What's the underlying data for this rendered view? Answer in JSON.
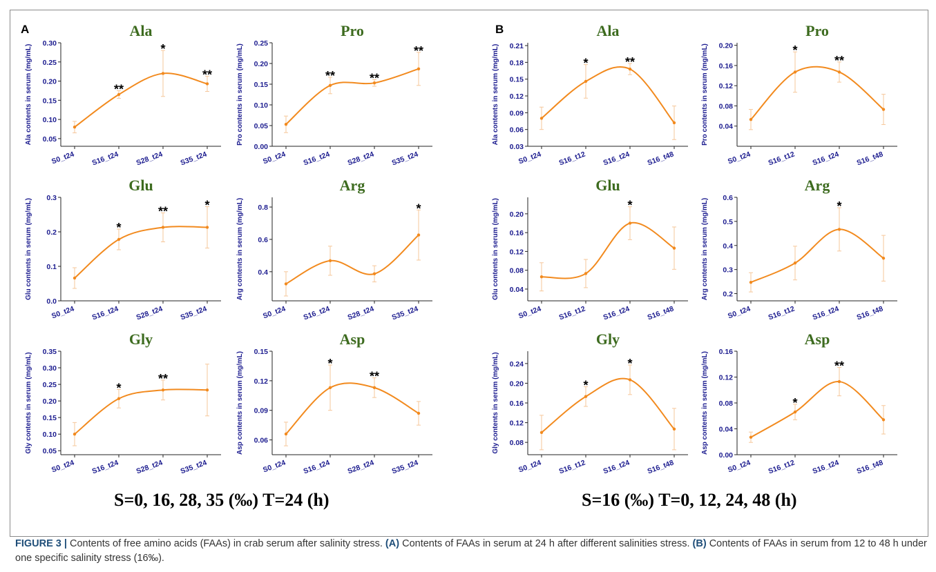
{
  "panels": [
    {
      "letter": "A",
      "condition": "S=0, 16, 28, 35 (‰)  T=24 (h)"
    },
    {
      "letter": "B",
      "condition": "S=16 (‰)  T=0, 12, 24, 48 (h)"
    }
  ],
  "caption": {
    "label": "FIGURE 3 |",
    "text1": " Contents of free amino acids (FAAs) in crab serum after salinity stress. ",
    "a_tag": "(A)",
    "text2": " Contents of FAAs in serum at 24 h after different salinities stress. ",
    "b_tag": "(B)",
    "text3": " Contents of FAAs in serum from 12 to 48 h under one specific salinity stress (16‰)."
  },
  "colors": {
    "line": "#f28a1e",
    "error": "#f6c79a",
    "axis": "#222222",
    "title": "#3d6b1f",
    "tick": "#1c1c8f"
  },
  "chart_data": [
    {
      "type": "line",
      "panel": "A",
      "title": "Ala",
      "ylabel": "Ala contents in serum (mg/mL)",
      "categories": [
        "S0_t24",
        "S16_t24",
        "S28_t24",
        "S35_t24"
      ],
      "values": [
        0.08,
        0.165,
        0.22,
        0.193
      ],
      "errors": [
        0.015,
        0.01,
        0.06,
        0.02
      ],
      "sig": [
        "",
        "**",
        "*",
        "**"
      ],
      "ylim": [
        0.03,
        0.3
      ],
      "yticks": [
        "0.05",
        "0.10",
        "0.15",
        "0.20",
        "0.25",
        "0.30"
      ]
    },
    {
      "type": "line",
      "panel": "A",
      "title": "Pro",
      "ylabel": "Pro contents in serum (mg/mL)",
      "categories": [
        "S0_t24",
        "S16_t24",
        "S28_t24",
        "S35_t24"
      ],
      "values": [
        0.053,
        0.147,
        0.153,
        0.187
      ],
      "errors": [
        0.02,
        0.02,
        0.008,
        0.04
      ],
      "sig": [
        "",
        "**",
        "**",
        "**"
      ],
      "ylim": [
        0.0,
        0.25
      ],
      "yticks": [
        "0.00",
        "0.05",
        "0.10",
        "0.15",
        "0.20",
        "0.25"
      ]
    },
    {
      "type": "line",
      "panel": "A",
      "title": "Glu",
      "ylabel": "Glu contents in serum (mg/mL)",
      "categories": [
        "S0_t24",
        "S16_t24",
        "S28_t24",
        "S35_t24"
      ],
      "values": [
        0.066,
        0.178,
        0.213,
        0.213
      ],
      "errors": [
        0.03,
        0.03,
        0.042,
        0.06
      ],
      "sig": [
        "",
        "*",
        "**",
        "*"
      ],
      "ylim": [
        0.0,
        0.3
      ],
      "yticks": [
        "0.0",
        "0.1",
        "0.2",
        "0.3"
      ]
    },
    {
      "type": "line",
      "panel": "A",
      "title": "Arg",
      "ylabel": "Arg contents in serum (mg/mL)",
      "categories": [
        "S0_t24",
        "S16_t24",
        "S28_t24",
        "S35_t24"
      ],
      "values": [
        0.325,
        0.468,
        0.387,
        0.627
      ],
      "errors": [
        0.075,
        0.09,
        0.05,
        0.155
      ],
      "sig": [
        "",
        "",
        "",
        "*"
      ],
      "ylim": [
        0.22,
        0.86
      ],
      "yticks": [
        "0.4",
        "0.6",
        "0.8"
      ]
    },
    {
      "type": "line",
      "panel": "A",
      "title": "Gly",
      "ylabel": "Gly contents in serum (mg/mL)",
      "categories": [
        "S0_t24",
        "S16_t24",
        "S28_t24",
        "S35_t24"
      ],
      "values": [
        0.1,
        0.207,
        0.233,
        0.233
      ],
      "errors": [
        0.035,
        0.028,
        0.03,
        0.078
      ],
      "sig": [
        "",
        "*",
        "**",
        ""
      ],
      "ylim": [
        0.038,
        0.35
      ],
      "yticks": [
        "0.05",
        "0.10",
        "0.15",
        "0.20",
        "0.25",
        "0.30",
        "0.35"
      ]
    },
    {
      "type": "line",
      "panel": "A",
      "title": "Asp",
      "ylabel": "Asp contents in serum (mg/mL)",
      "categories": [
        "S0_t24",
        "S16_t24",
        "S28_t24",
        "S35_t24"
      ],
      "values": [
        0.066,
        0.113,
        0.113,
        0.087
      ],
      "errors": [
        0.012,
        0.023,
        0.01,
        0.012
      ],
      "sig": [
        "",
        "*",
        "**",
        ""
      ],
      "ylim": [
        0.045,
        0.15
      ],
      "yticks": [
        "0.06",
        "0.09",
        "0.12",
        "0.15"
      ]
    },
    {
      "type": "line",
      "panel": "B",
      "title": "Ala",
      "ylabel": "Ala contents in serum (mg/mL)",
      "categories": [
        "S0_t24",
        "S16_t12",
        "S16_t24",
        "S16_t48"
      ],
      "values": [
        0.08,
        0.146,
        0.168,
        0.072
      ],
      "errors": [
        0.02,
        0.03,
        0.01,
        0.03
      ],
      "sig": [
        "",
        "*",
        "**",
        ""
      ],
      "ylim": [
        0.03,
        0.215
      ],
      "yticks": [
        "0.03",
        "0.06",
        "0.09",
        "0.12",
        "0.15",
        "0.18",
        "0.21"
      ]
    },
    {
      "type": "line",
      "panel": "B",
      "title": "Pro",
      "ylabel": "Pro contents in serum (mg/mL)",
      "categories": [
        "S0_t24",
        "S16_t12",
        "S16_t24",
        "S16_t48"
      ],
      "values": [
        0.053,
        0.147,
        0.147,
        0.073
      ],
      "errors": [
        0.02,
        0.04,
        0.02,
        0.03
      ],
      "sig": [
        "",
        "*",
        "**",
        ""
      ],
      "ylim": [
        0.0,
        0.205
      ],
      "yticks": [
        "0.04",
        "0.08",
        "0.12",
        "0.16",
        "0.20"
      ]
    },
    {
      "type": "line",
      "panel": "B",
      "title": "Glu",
      "ylabel": "Glu contents in serum (mg/mL)",
      "categories": [
        "S0_t24",
        "S16_t12",
        "S16_t24",
        "S16_t48"
      ],
      "values": [
        0.066,
        0.073,
        0.18,
        0.127
      ],
      "errors": [
        0.03,
        0.03,
        0.035,
        0.045
      ],
      "sig": [
        "",
        "",
        "*",
        ""
      ],
      "ylim": [
        0.015,
        0.235
      ],
      "yticks": [
        "0.04",
        "0.08",
        "0.12",
        "0.16",
        "0.20"
      ]
    },
    {
      "type": "line",
      "panel": "B",
      "title": "Arg",
      "ylabel": "Arg contents in serum (mg/mL)",
      "categories": [
        "S0_t24",
        "S16_t12",
        "S16_t24",
        "S16_t48"
      ],
      "values": [
        0.247,
        0.327,
        0.467,
        0.347
      ],
      "errors": [
        0.04,
        0.07,
        0.09,
        0.095
      ],
      "sig": [
        "",
        "",
        "*",
        ""
      ],
      "ylim": [
        0.17,
        0.6
      ],
      "yticks": [
        "0.2",
        "0.3",
        "0.4",
        "0.5",
        "0.6"
      ]
    },
    {
      "type": "line",
      "panel": "B",
      "title": "Gly",
      "ylabel": "Gly contents in serum (mg/mL)",
      "categories": [
        "S0_t24",
        "S16_t12",
        "S16_t24",
        "S16_t48"
      ],
      "values": [
        0.1,
        0.173,
        0.207,
        0.107
      ],
      "errors": [
        0.035,
        0.02,
        0.03,
        0.042
      ],
      "sig": [
        "",
        "*",
        "*",
        ""
      ],
      "ylim": [
        0.055,
        0.265
      ],
      "yticks": [
        "0.08",
        "0.12",
        "0.16",
        "0.20",
        "0.24"
      ]
    },
    {
      "type": "line",
      "panel": "B",
      "title": "Asp",
      "ylabel": "Asp contents in serum (mg/mL)",
      "categories": [
        "S0_t24",
        "S16_t12",
        "S16_t24",
        "S16_t48"
      ],
      "values": [
        0.027,
        0.066,
        0.113,
        0.054
      ],
      "errors": [
        0.008,
        0.012,
        0.022,
        0.022
      ],
      "sig": [
        "",
        "*",
        "**",
        ""
      ],
      "ylim": [
        0.0,
        0.16
      ],
      "yticks": [
        "0.00",
        "0.04",
        "0.08",
        "0.12",
        "0.16"
      ]
    }
  ]
}
